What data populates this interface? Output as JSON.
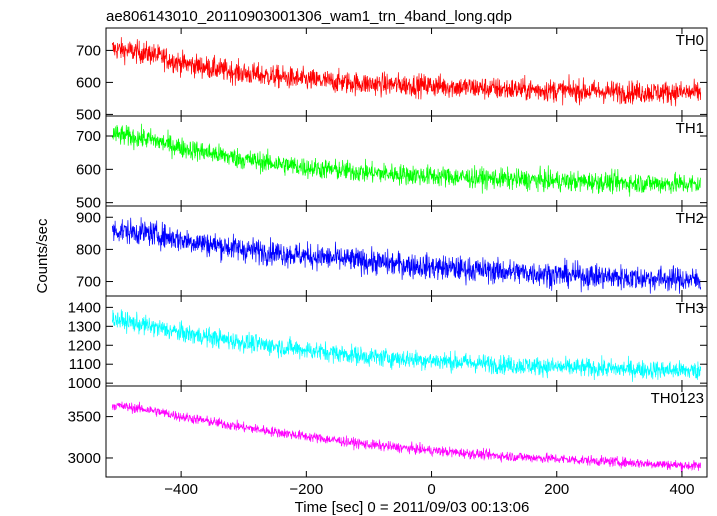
{
  "chart_data": {
    "type": "line",
    "title": "ae806143010_20110903001306_wam1_trn_4band_long.qdp",
    "xlabel": "Time [sec] 0 = 2011/09/03 00:13:06",
    "ylabel": "Counts/sec",
    "xlim": [
      -520,
      440
    ],
    "x_ticks": [
      -400,
      -200,
      0,
      200,
      400
    ],
    "x_tick_labels": [
      "−400",
      "−200",
      "0",
      "200",
      "400"
    ],
    "x_start": -510,
    "x_end": 430,
    "panels": [
      {
        "name": "TH0",
        "color": "#ff0000",
        "ylim": [
          495,
          770
        ],
        "y_ticks": [
          500,
          600,
          700
        ],
        "y_tick_labels": [
          "500",
          "600",
          "700"
        ],
        "trend": [
          [
            -510,
            705
          ],
          [
            -450,
            690
          ],
          [
            -400,
            660
          ],
          [
            -300,
            628
          ],
          [
            -200,
            608
          ],
          [
            -100,
            595
          ],
          [
            0,
            590
          ],
          [
            100,
            580
          ],
          [
            200,
            575
          ],
          [
            300,
            570
          ],
          [
            430,
            568
          ]
        ],
        "noise": 32
      },
      {
        "name": "TH1",
        "color": "#00ff00",
        "ylim": [
          490,
          760
        ],
        "y_ticks": [
          500,
          600,
          700
        ],
        "y_tick_labels": [
          "500",
          "600",
          "700"
        ],
        "trend": [
          [
            -510,
            705
          ],
          [
            -450,
            690
          ],
          [
            -400,
            665
          ],
          [
            -300,
            630
          ],
          [
            -200,
            605
          ],
          [
            -100,
            590
          ],
          [
            0,
            580
          ],
          [
            100,
            572
          ],
          [
            200,
            565
          ],
          [
            300,
            560
          ],
          [
            430,
            555
          ]
        ],
        "noise": 28
      },
      {
        "name": "TH2",
        "color": "#0000ff",
        "ylim": [
          655,
          935
        ],
        "y_ticks": [
          700,
          800,
          900
        ],
        "y_tick_labels": [
          "700",
          "800",
          "900"
        ],
        "trend": [
          [
            -510,
            860
          ],
          [
            -450,
            850
          ],
          [
            -400,
            830
          ],
          [
            -300,
            800
          ],
          [
            -200,
            780
          ],
          [
            -100,
            762
          ],
          [
            0,
            745
          ],
          [
            100,
            733
          ],
          [
            200,
            722
          ],
          [
            300,
            713
          ],
          [
            430,
            705
          ]
        ],
        "noise": 35
      },
      {
        "name": "TH3",
        "color": "#00ffff",
        "ylim": [
          985,
          1460
        ],
        "y_ticks": [
          1000,
          1100,
          1200,
          1300,
          1400
        ],
        "y_tick_labels": [
          "1000",
          "1100",
          "1200",
          "1300",
          "1400"
        ],
        "trend": [
          [
            -510,
            1340
          ],
          [
            -450,
            1300
          ],
          [
            -400,
            1265
          ],
          [
            -300,
            1215
          ],
          [
            -200,
            1175
          ],
          [
            -100,
            1140
          ],
          [
            0,
            1120
          ],
          [
            100,
            1100
          ],
          [
            200,
            1085
          ],
          [
            300,
            1075
          ],
          [
            430,
            1065
          ]
        ],
        "noise": 45
      },
      {
        "name": "TH0123",
        "color": "#ff00ff",
        "ylim": [
          2770,
          3870
        ],
        "y_ticks": [
          3000,
          3500
        ],
        "y_tick_labels": [
          "3000",
          "3500"
        ],
        "trend": [
          [
            -510,
            3640
          ],
          [
            -450,
            3580
          ],
          [
            -400,
            3500
          ],
          [
            -300,
            3370
          ],
          [
            -200,
            3260
          ],
          [
            -100,
            3160
          ],
          [
            0,
            3090
          ],
          [
            100,
            3030
          ],
          [
            200,
            2990
          ],
          [
            300,
            2950
          ],
          [
            430,
            2900
          ]
        ],
        "noise": 55
      }
    ]
  }
}
